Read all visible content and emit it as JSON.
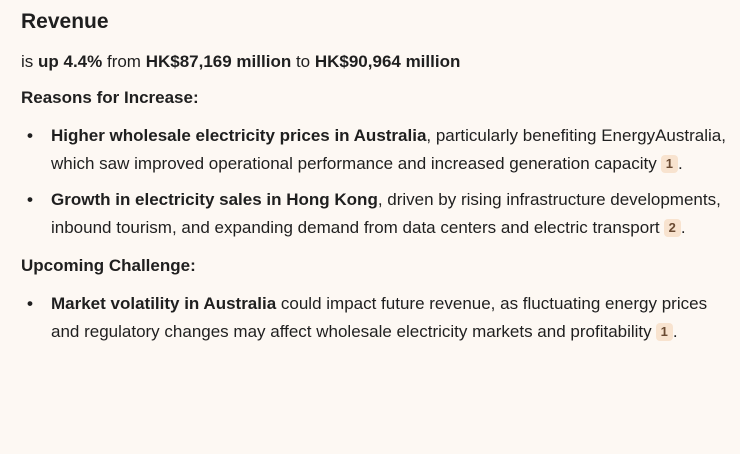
{
  "title": "Revenue",
  "summary": {
    "prefix": "is ",
    "change": "up 4.4%",
    "mid1": " from ",
    "from_value": "HK$87,169 million",
    "mid2": " to ",
    "to_value": "HK$90,964 million"
  },
  "increase": {
    "heading": "Reasons for Increase:",
    "items": [
      {
        "bold": "Higher wholesale electricity prices in Australia",
        "text": ", particularly benefiting EnergyAustralia, which saw improved operational performance and increased generation capacity",
        "cite": "1",
        "end": "."
      },
      {
        "bold": "Growth in electricity sales in Hong Kong",
        "text": ", driven by rising infrastructure developments, inbound tourism, and expanding demand from data centers and electric transport",
        "cite": "2",
        "end": "."
      }
    ]
  },
  "challenge": {
    "heading": "Upcoming Challenge:",
    "items": [
      {
        "bold": "Market volatility in Australia",
        "text": " could impact future revenue, as fluctuating energy prices and regulatory changes may affect wholesale electricity markets and profitability",
        "cite": "1",
        "end": "."
      }
    ]
  },
  "bullet_glyph": "•"
}
